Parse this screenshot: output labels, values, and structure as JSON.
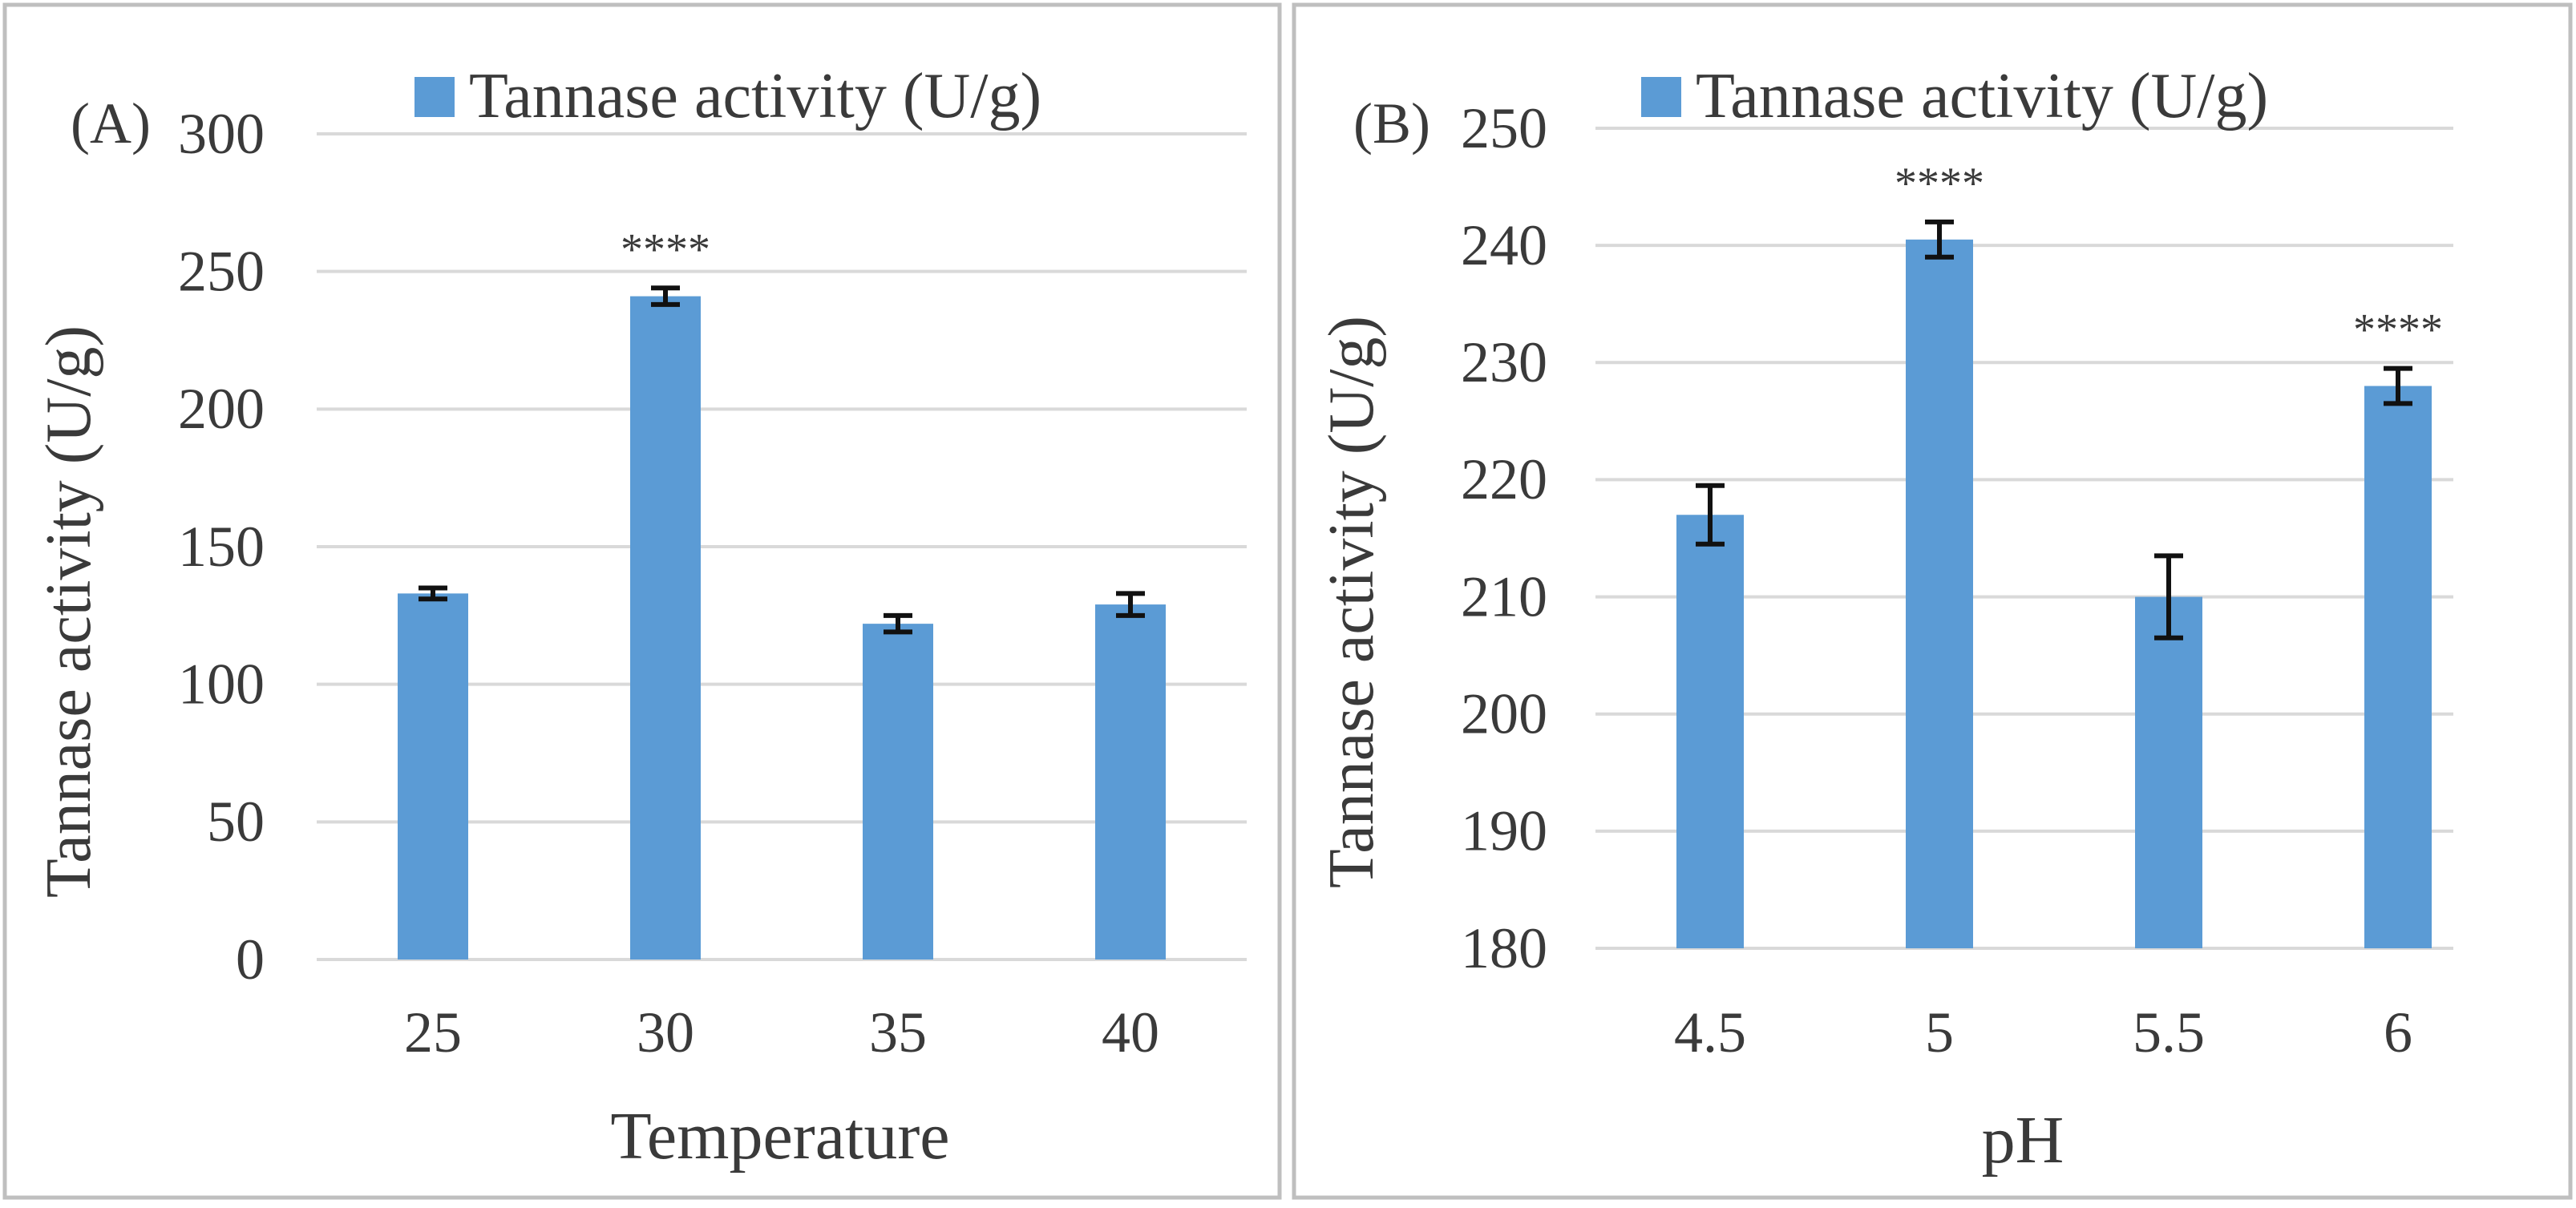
{
  "figure": {
    "colors": {
      "bar": "#5b9bd5",
      "grid": "#d9d9d9",
      "frame": "#bfbfbf",
      "text": "#3a3a3a",
      "error_bar": "#111111"
    }
  },
  "chart_data": [
    {
      "type": "bar",
      "panel_label": "(A)",
      "legend": {
        "label": "Tannase activity (U/g)",
        "placement": "top-center"
      },
      "xlabel": "Temperature",
      "ylabel": "Tannase activity (U/g)",
      "categories": [
        "25",
        "30",
        "35",
        "40"
      ],
      "series": [
        {
          "name": "Tannase activity (U/g)",
          "values": [
            133,
            241,
            122,
            129
          ],
          "errors": [
            2,
            3,
            3,
            4
          ]
        }
      ],
      "ylim": [
        0,
        300
      ],
      "yticks": [
        0,
        50,
        100,
        150,
        200,
        250,
        300
      ],
      "ytick_labels": [
        "0",
        "50",
        "100",
        "150",
        "200",
        "250",
        "300"
      ],
      "grid": true,
      "annotations": [
        {
          "category": "30",
          "text": "****"
        }
      ]
    },
    {
      "type": "bar",
      "panel_label": "(B)",
      "legend": {
        "label": "Tannase activity (U/g)",
        "placement": "top-center"
      },
      "xlabel": "pH",
      "ylabel": "Tannase activity (U/g)",
      "categories": [
        "4.5",
        "5",
        "5.5",
        "6"
      ],
      "series": [
        {
          "name": "Tannase activity (U/g)",
          "values": [
            217,
            240.5,
            210,
            228
          ],
          "errors": [
            2.5,
            1.5,
            3.5,
            1.5
          ]
        }
      ],
      "ylim": [
        180,
        250
      ],
      "yticks": [
        180,
        190,
        200,
        210,
        220,
        230,
        240,
        250
      ],
      "ytick_labels": [
        "180",
        "190",
        "200",
        "210",
        "220",
        "230",
        "240",
        "250"
      ],
      "grid": true,
      "annotations": [
        {
          "category": "5",
          "text": "****"
        },
        {
          "category": "6",
          "text": "****"
        }
      ]
    }
  ]
}
